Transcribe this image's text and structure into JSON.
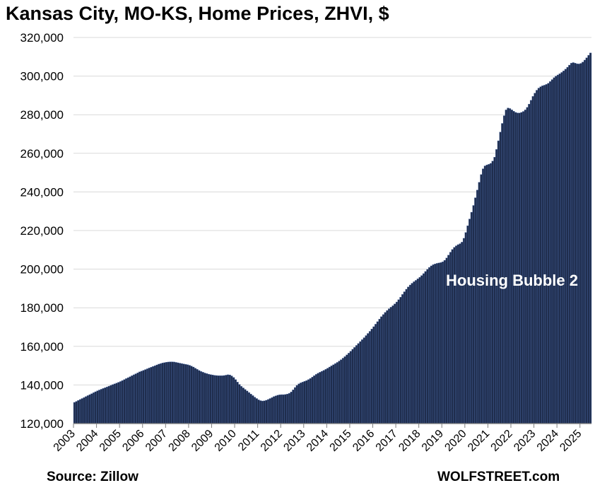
{
  "chart_data": {
    "type": "bar",
    "title": "Kansas City, MO-KS, Home Prices, ZHVI, $",
    "ylim": [
      120000,
      320000
    ],
    "y_ticks": [
      "120,000",
      "140,000",
      "160,000",
      "180,000",
      "200,000",
      "220,000",
      "240,000",
      "260,000",
      "280,000",
      "300,000",
      "320,000"
    ],
    "x_ticks": [
      "2003",
      "2004",
      "2005",
      "2006",
      "2007",
      "2008",
      "2009",
      "2010",
      "2011",
      "2012",
      "2013",
      "2014",
      "2015",
      "2016",
      "2017",
      "2018",
      "2019",
      "2020",
      "2021",
      "2022",
      "2023",
      "2024",
      "2025"
    ],
    "grid": "horizontal",
    "annotation": "Housing Bubble 2",
    "source": "Source: Zillow",
    "brand": "WOLFSTREET.com",
    "bar_color": "#1f2d4d",
    "bar_edge_color": "#4a6aa8",
    "series": [
      {
        "x_start": "2003-01",
        "frequency": "monthly",
        "values": [
          131000,
          131500,
          132000,
          132500,
          133000,
          133500,
          134000,
          134500,
          135000,
          135500,
          136000,
          136500,
          137000,
          137400,
          137800,
          138200,
          138600,
          139000,
          139400,
          139800,
          140200,
          140600,
          141000,
          141400,
          141800,
          142300,
          142800,
          143300,
          143800,
          144300,
          144800,
          145300,
          145800,
          146300,
          146800,
          147200,
          147600,
          148000,
          148400,
          148800,
          149200,
          149600,
          150000,
          150400,
          150800,
          151100,
          151400,
          151600,
          151800,
          151900,
          152000,
          152000,
          151900,
          151700,
          151500,
          151300,
          151100,
          150900,
          150700,
          150500,
          150200,
          149800,
          149300,
          148700,
          148100,
          147500,
          147000,
          146600,
          146200,
          145900,
          145600,
          145400,
          145200,
          145000,
          144900,
          144800,
          144800,
          144800,
          144900,
          145100,
          145300,
          145200,
          144700,
          143900,
          142800,
          141500,
          140300,
          139300,
          138500,
          137700,
          136900,
          136100,
          135300,
          134500,
          133700,
          133000,
          132300,
          131900,
          131700,
          131800,
          132100,
          132500,
          133000,
          133500,
          134000,
          134400,
          134700,
          134900,
          135000,
          135000,
          135100,
          135300,
          135700,
          136400,
          137500,
          138700,
          139800,
          140600,
          141100,
          141500,
          141900,
          142300,
          142800,
          143400,
          144100,
          144800,
          145500,
          146100,
          146600,
          147100,
          147600,
          148100,
          148700,
          149300,
          149900,
          150500,
          151100,
          151700,
          152400,
          153100,
          153900,
          154700,
          155600,
          156500,
          157500,
          158500,
          159500,
          160500,
          161500,
          162500,
          163500,
          164500,
          165600,
          166700,
          167800,
          169000,
          170200,
          171500,
          172800,
          174100,
          175400,
          176500,
          177600,
          178600,
          179500,
          180300,
          181100,
          182000,
          183000,
          184200,
          185500,
          186900,
          188300,
          189600,
          190800,
          191800,
          192700,
          193500,
          194200,
          195000,
          195800,
          196700,
          197700,
          198800,
          199900,
          200900,
          201700,
          202300,
          202700,
          203000,
          203200,
          203400,
          203800,
          204600,
          205800,
          207300,
          208800,
          210200,
          211300,
          212100,
          212700,
          213200,
          214000,
          216000,
          219000,
          222500,
          226000,
          229500,
          233000,
          237000,
          241000,
          245000,
          249000,
          252000,
          253500,
          254000,
          254300,
          254800,
          256000,
          258000,
          262000,
          266500,
          271000,
          275500,
          279500,
          282500,
          283500,
          283200,
          282500,
          281800,
          281200,
          280900,
          280900,
          281200,
          281700,
          282500,
          283800,
          285500,
          287500,
          289500,
          291200,
          292700,
          293800,
          294500,
          295000,
          295300,
          295700,
          296300,
          297200,
          298200,
          299200,
          300000,
          300600,
          301200,
          301900,
          302700,
          303600,
          304600,
          305700,
          306700,
          307000,
          306700,
          306400,
          306300,
          306600,
          307300,
          308300,
          309500,
          310800,
          312000
        ]
      }
    ]
  }
}
